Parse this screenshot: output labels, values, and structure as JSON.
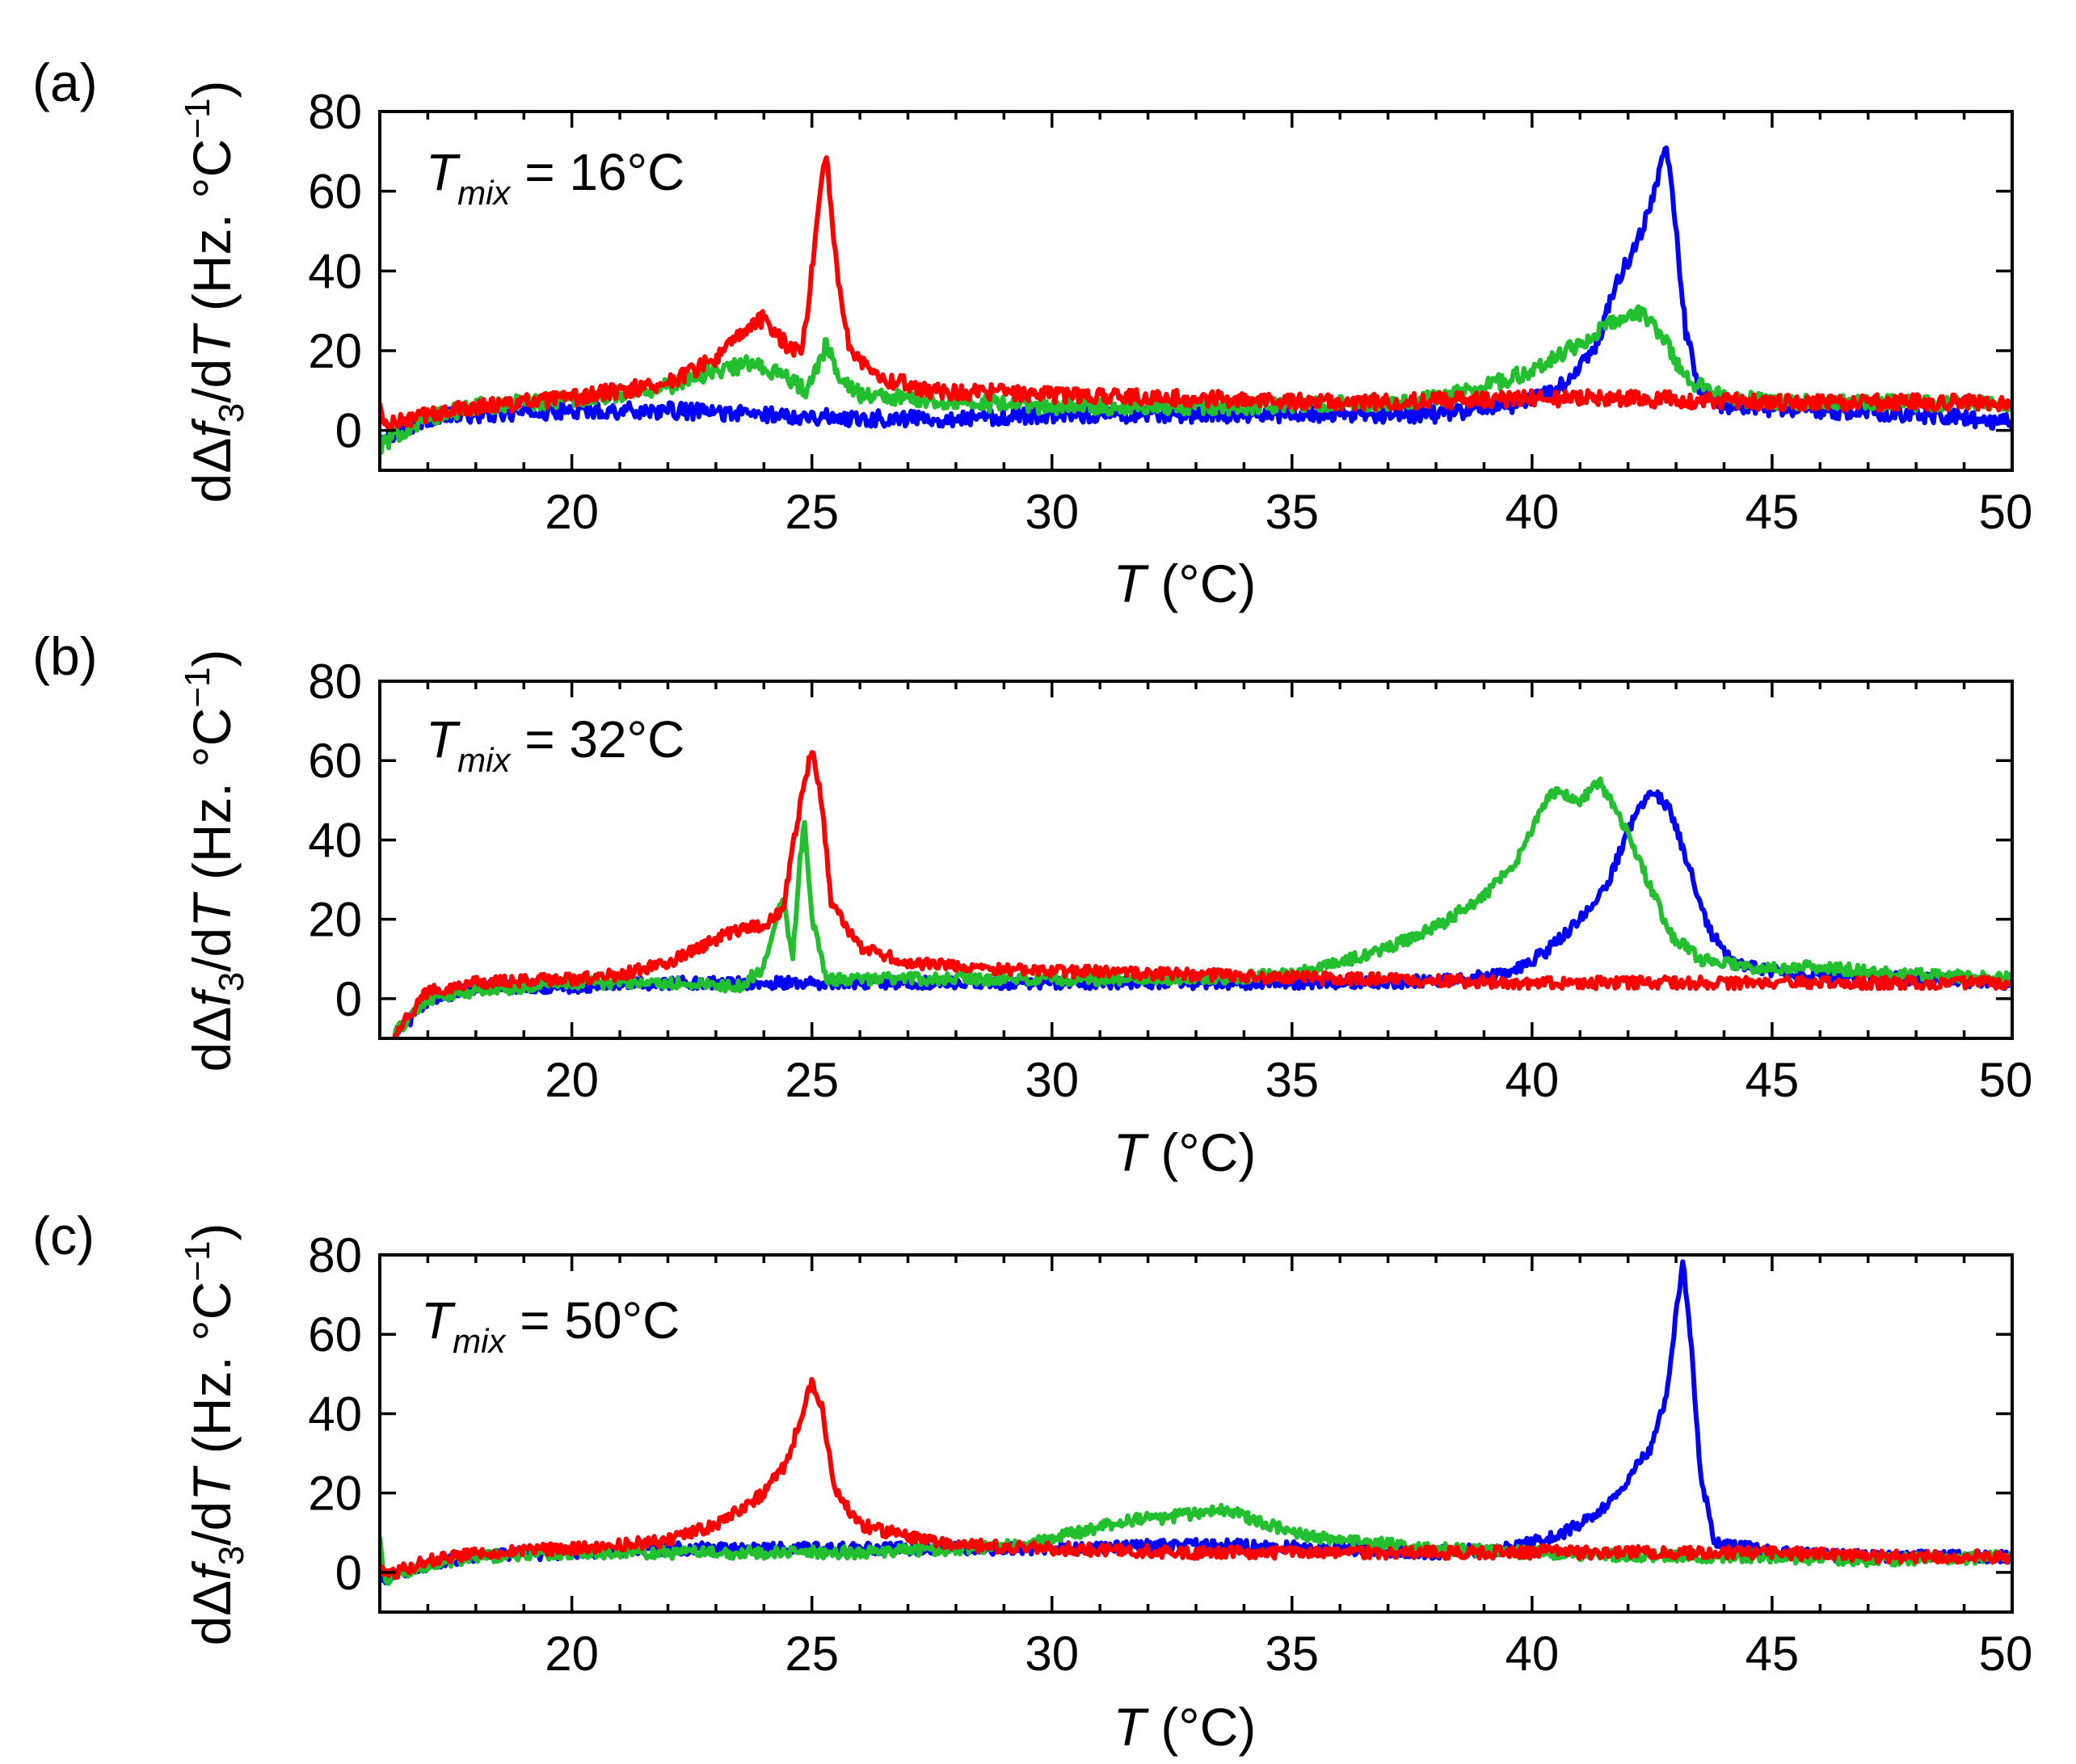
{
  "chart_data": [
    {
      "type": "line",
      "panel": "(a)",
      "annotation": {
        "symbol": "T",
        "subscript": "mix",
        "text": " = 16°C"
      },
      "xlabel": {
        "symbol": "T",
        "text": " (°C)"
      },
      "ylabel": {
        "d": "d",
        "delta": "Δ",
        "f": "f",
        "sub": "3",
        "slash": "/d",
        "T": "T",
        "units": " (Hz. °C",
        "sup": "−1",
        "close": ")"
      },
      "xlim": [
        16,
        50
      ],
      "ylim": [
        -10,
        80
      ],
      "xticks": [
        20,
        25,
        30,
        35,
        40,
        45,
        50
      ],
      "yticks": [
        0,
        20,
        40,
        60,
        80
      ],
      "baseline_noise": 2.0,
      "series": [
        {
          "name": "blue",
          "color": "#0000ff",
          "points": [
            [
              16,
              -2
            ],
            [
              17,
              3
            ],
            [
              18,
              4
            ],
            [
              20,
              5
            ],
            [
              22,
              5
            ],
            [
              24,
              4
            ],
            [
              26,
              3
            ],
            [
              28,
              3
            ],
            [
              30,
              4
            ],
            [
              34,
              4
            ],
            [
              38,
              4
            ],
            [
              39.5,
              6
            ],
            [
              40.5,
              10
            ],
            [
              41.3,
              20
            ],
            [
              41.8,
              38
            ],
            [
              42.3,
              50
            ],
            [
              42.6,
              62
            ],
            [
              42.8,
              71
            ],
            [
              43.0,
              50
            ],
            [
              43.2,
              25
            ],
            [
              43.5,
              10
            ],
            [
              44,
              6
            ],
            [
              46,
              5
            ],
            [
              48,
              4
            ],
            [
              50,
              2
            ]
          ]
        },
        {
          "name": "green",
          "color": "#22c02e",
          "points": [
            [
              16,
              -4
            ],
            [
              16.5,
              0
            ],
            [
              17,
              3
            ],
            [
              18,
              6
            ],
            [
              20,
              8
            ],
            [
              21,
              9
            ],
            [
              22,
              11
            ],
            [
              23,
              15
            ],
            [
              23.8,
              17
            ],
            [
              24.5,
              13
            ],
            [
              24.9,
              10
            ],
            [
              25.2,
              18
            ],
            [
              25.3,
              22
            ],
            [
              25.5,
              15
            ],
            [
              26,
              9
            ],
            [
              28,
              7
            ],
            [
              30,
              6
            ],
            [
              34,
              6
            ],
            [
              37,
              7
            ],
            [
              38,
              8
            ],
            [
              39,
              11
            ],
            [
              40,
              15
            ],
            [
              41,
              22
            ],
            [
              41.8,
              28
            ],
            [
              42.2,
              30
            ],
            [
              42.7,
              24
            ],
            [
              43.2,
              13
            ],
            [
              43.8,
              9
            ],
            [
              45,
              7
            ],
            [
              47,
              7
            ],
            [
              50,
              7
            ]
          ]
        },
        {
          "name": "red",
          "color": "#ff0000",
          "points": [
            [
              16,
              6
            ],
            [
              16.1,
              1
            ],
            [
              17,
              4
            ],
            [
              18,
              6
            ],
            [
              20,
              8
            ],
            [
              22,
              12
            ],
            [
              23,
              18
            ],
            [
              23.7,
              26
            ],
            [
              24,
              28
            ],
            [
              24.5,
              21
            ],
            [
              24.8,
              20
            ],
            [
              25.0,
              40
            ],
            [
              25.2,
              64
            ],
            [
              25.3,
              69
            ],
            [
              25.5,
              42
            ],
            [
              25.8,
              20
            ],
            [
              26.5,
              13
            ],
            [
              27.5,
              10
            ],
            [
              30,
              9
            ],
            [
              33,
              8
            ],
            [
              36,
              7
            ],
            [
              40,
              8
            ],
            [
              42,
              8
            ],
            [
              45,
              7
            ],
            [
              48,
              7
            ],
            [
              50,
              7
            ]
          ]
        }
      ]
    },
    {
      "type": "line",
      "panel": "(b)",
      "annotation": {
        "symbol": "T",
        "subscript": "mix",
        "text": " = 32°C"
      },
      "xlabel": {
        "symbol": "T",
        "text": " (°C)"
      },
      "ylabel": {
        "d": "d",
        "delta": "Δ",
        "f": "f",
        "sub": "3",
        "slash": "/d",
        "T": "T",
        "units": " (Hz. °C",
        "sup": "−1",
        "close": ")"
      },
      "xlim": [
        16,
        50
      ],
      "ylim": [
        -10,
        80
      ],
      "xticks": [
        20,
        25,
        30,
        35,
        40,
        45,
        50
      ],
      "yticks": [
        0,
        20,
        40,
        60,
        80
      ],
      "baseline_noise": 1.5,
      "series": [
        {
          "name": "blue",
          "color": "#0000ff",
          "points": [
            [
              16.3,
              -9
            ],
            [
              17,
              -1
            ],
            [
              18,
              3
            ],
            [
              20,
              3
            ],
            [
              22,
              4
            ],
            [
              26,
              4
            ],
            [
              30,
              4
            ],
            [
              34,
              4
            ],
            [
              37,
              4
            ],
            [
              38.5,
              5
            ],
            [
              39.5,
              6
            ],
            [
              40.3,
              12
            ],
            [
              41,
              20
            ],
            [
              41.6,
              30
            ],
            [
              42.1,
              45
            ],
            [
              42.5,
              53
            ],
            [
              42.9,
              47
            ],
            [
              43.3,
              32
            ],
            [
              43.7,
              17
            ],
            [
              44.2,
              9
            ],
            [
              45,
              7
            ],
            [
              46,
              6
            ],
            [
              48,
              5
            ],
            [
              50,
              4
            ]
          ]
        },
        {
          "name": "green",
          "color": "#22c02e",
          "points": [
            [
              16.3,
              -9
            ],
            [
              17,
              0
            ],
            [
              18,
              2
            ],
            [
              20,
              4
            ],
            [
              22,
              4
            ],
            [
              23.5,
              3
            ],
            [
              24,
              8
            ],
            [
              24.2,
              18
            ],
            [
              24.4,
              26
            ],
            [
              24.6,
              10
            ],
            [
              24.75,
              35
            ],
            [
              24.85,
              45
            ],
            [
              25.0,
              20
            ],
            [
              25.3,
              5
            ],
            [
              26,
              5
            ],
            [
              28,
              5
            ],
            [
              30,
              5
            ],
            [
              33,
              5
            ],
            [
              35,
              6
            ],
            [
              36,
              9
            ],
            [
              37,
              13
            ],
            [
              38,
              18
            ],
            [
              39,
              26
            ],
            [
              39.7,
              35
            ],
            [
              40.3,
              50
            ],
            [
              40.5,
              52
            ],
            [
              41,
              50
            ],
            [
              41.4,
              55
            ],
            [
              41.9,
              44
            ],
            [
              42.4,
              30
            ],
            [
              42.9,
              16
            ],
            [
              43.5,
              10
            ],
            [
              44.5,
              8
            ],
            [
              46,
              8
            ],
            [
              48,
              6
            ],
            [
              50,
              5
            ]
          ]
        },
        {
          "name": "red",
          "color": "#ff0000",
          "points": [
            [
              16.3,
              -9
            ],
            [
              17,
              2
            ],
            [
              18,
              4
            ],
            [
              20,
              5
            ],
            [
              21,
              6
            ],
            [
              22,
              9
            ],
            [
              23,
              15
            ],
            [
              23.6,
              18
            ],
            [
              24,
              18
            ],
            [
              24.4,
              23
            ],
            [
              24.8,
              52
            ],
            [
              25.0,
              63
            ],
            [
              25.2,
              50
            ],
            [
              25.4,
              24
            ],
            [
              26,
              13
            ],
            [
              27,
              9
            ],
            [
              28,
              8
            ],
            [
              30,
              7
            ],
            [
              33,
              6
            ],
            [
              36,
              5
            ],
            [
              40,
              4
            ],
            [
              42,
              4
            ],
            [
              44,
              4
            ],
            [
              46,
              4
            ],
            [
              48,
              4
            ],
            [
              50,
              4
            ]
          ]
        }
      ]
    },
    {
      "type": "line",
      "panel": "(c)",
      "annotation": {
        "symbol": "T",
        "subscript": "mix",
        "text": " = 50°C"
      },
      "xlabel": {
        "symbol": "T",
        "text": " (°C)"
      },
      "ylabel": {
        "d": "d",
        "delta": "Δ",
        "f": "f",
        "sub": "3",
        "slash": "/d",
        "T": "T",
        "units": " (Hz. °C",
        "sup": "−1",
        "close": ")"
      },
      "xlim": [
        16,
        50
      ],
      "ylim": [
        -10,
        80
      ],
      "xticks": [
        20,
        25,
        30,
        35,
        40,
        45,
        50
      ],
      "yticks": [
        0,
        20,
        40,
        60,
        80
      ],
      "baseline_noise": 1.5,
      "series": [
        {
          "name": "blue",
          "color": "#0000ff",
          "points": [
            [
              16,
              -2
            ],
            [
              17,
              2
            ],
            [
              18,
              4
            ],
            [
              20,
              5
            ],
            [
              22,
              6
            ],
            [
              24,
              6
            ],
            [
              26,
              6
            ],
            [
              28,
              6
            ],
            [
              30,
              6
            ],
            [
              33,
              7
            ],
            [
              36,
              6
            ],
            [
              38,
              5
            ],
            [
              39.5,
              6
            ],
            [
              40.5,
              9
            ],
            [
              41.3,
              14
            ],
            [
              41.9,
              22
            ],
            [
              42.5,
              32
            ],
            [
              42.8,
              45
            ],
            [
              43.0,
              65
            ],
            [
              43.15,
              78
            ],
            [
              43.3,
              60
            ],
            [
              43.5,
              25
            ],
            [
              43.8,
              8
            ],
            [
              45,
              5
            ],
            [
              47,
              4
            ],
            [
              50,
              4
            ]
          ]
        },
        {
          "name": "green",
          "color": "#22c02e",
          "points": [
            [
              16,
              9
            ],
            [
              16.1,
              -2
            ],
            [
              17,
              2
            ],
            [
              18,
              4
            ],
            [
              20,
              5
            ],
            [
              22,
              5
            ],
            [
              24,
              5
            ],
            [
              26,
              5
            ],
            [
              28,
              6
            ],
            [
              29.5,
              7
            ],
            [
              30.5,
              10
            ],
            [
              31.5,
              13
            ],
            [
              32.5,
              14
            ],
            [
              33.5,
              16
            ],
            [
              34.3,
              13
            ],
            [
              35,
              10
            ],
            [
              36,
              8
            ],
            [
              38,
              6
            ],
            [
              40,
              5
            ],
            [
              43,
              4
            ],
            [
              45,
              4
            ],
            [
              47,
              3
            ],
            [
              50,
              4
            ]
          ]
        },
        {
          "name": "red",
          "color": "#ff0000",
          "points": [
            [
              16,
              2
            ],
            [
              16.1,
              -1
            ],
            [
              17,
              3
            ],
            [
              18,
              5
            ],
            [
              20,
              6
            ],
            [
              22,
              8
            ],
            [
              23,
              12
            ],
            [
              24,
              20
            ],
            [
              24.5,
              28
            ],
            [
              24.9,
              45
            ],
            [
              25.0,
              48
            ],
            [
              25.2,
              42
            ],
            [
              25.5,
              20
            ],
            [
              26,
              12
            ],
            [
              27,
              9
            ],
            [
              28,
              7
            ],
            [
              30,
              6
            ],
            [
              33,
              5
            ],
            [
              36,
              5
            ],
            [
              38,
              5
            ],
            [
              40,
              5
            ],
            [
              40.5,
              6
            ],
            [
              41,
              5
            ],
            [
              43,
              5
            ],
            [
              45,
              5
            ],
            [
              47,
              4
            ],
            [
              50,
              4
            ]
          ]
        }
      ]
    }
  ]
}
